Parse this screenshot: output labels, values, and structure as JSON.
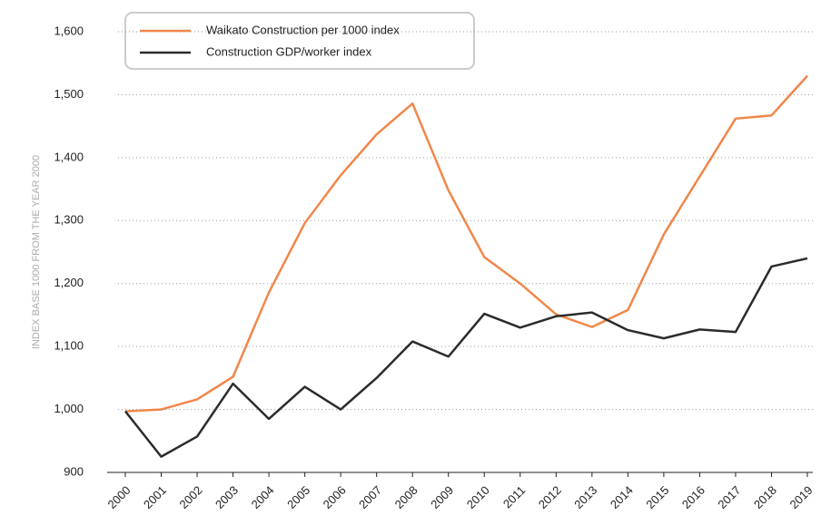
{
  "chart_data": {
    "type": "line",
    "y_axis_label": "INDEX BASE 1000 FROM THE YEAR 2000",
    "categories": [
      "2000",
      "2001",
      "2002",
      "2003",
      "2004",
      "2005",
      "2006",
      "2007",
      "2008",
      "2009",
      "2010",
      "2011",
      "2012",
      "2013",
      "2014",
      "2015",
      "2016",
      "2017",
      "2018",
      "2019"
    ],
    "series": [
      {
        "name": "Waikato Construction per 1000 index",
        "color": "#f0874a",
        "values": [
          997,
          1000,
          1016,
          1052,
          1186,
          1296,
          1372,
          1437,
          1486,
          1348,
          1242,
          1200,
          1151,
          1131,
          1158,
          1278,
          1370,
          1462,
          1467,
          1530
        ]
      },
      {
        "name": "Construction GDP/worker index",
        "color": "#2b2b2b",
        "values": [
          997,
          925,
          957,
          1041,
          985,
          1036,
          1000,
          1050,
          1108,
          1084,
          1152,
          1130,
          1148,
          1154,
          1126,
          1113,
          1127,
          1123,
          1227,
          1240
        ]
      }
    ],
    "ylim": [
      900,
      1600
    ],
    "yticks": [
      900,
      {
        "value": 1000,
        "label": "1,000"
      },
      {
        "value": 1100,
        "label": "1,100"
      },
      {
        "value": 1200,
        "label": "1,200"
      },
      {
        "value": 1300,
        "label": "1,300"
      },
      {
        "value": 1400,
        "label": "1,400"
      },
      {
        "value": 1500,
        "label": "1,500"
      },
      {
        "value": 1600,
        "label": "1,600"
      }
    ],
    "grid": true,
    "legend": "top-left"
  }
}
